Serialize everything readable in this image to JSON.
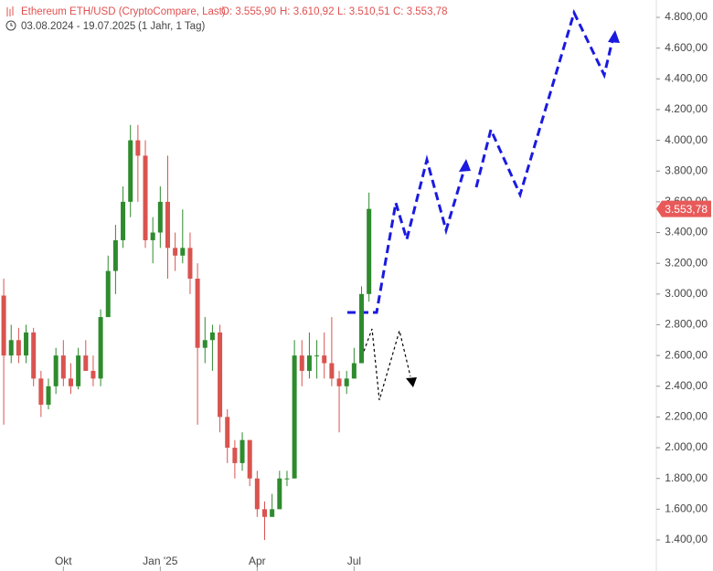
{
  "chart_data": {
    "type": "candlestick",
    "title": "Ethereum ETH/USD (CryptoCompare, Last)",
    "ohlc_texts": [
      "O: 3.555,90",
      "H: 3.610,92",
      "L: 3.510,51",
      "C: 3.553,78"
    ],
    "subtitle": "03.08.2024 - 19.07.2025",
    "period": "(1 Jahr, 1 Tag)",
    "categories": [
      null,
      null,
      null,
      null,
      null,
      null,
      null,
      null,
      "Okt",
      null,
      null,
      null,
      null,
      null,
      null,
      null,
      null,
      null,
      null,
      null,
      null,
      "Jan '25",
      null,
      null,
      null,
      null,
      null,
      null,
      null,
      null,
      null,
      null,
      null,
      null,
      "Apr",
      null,
      null,
      null,
      null,
      null,
      null,
      null,
      null,
      null,
      null,
      null,
      null,
      "Jul",
      null,
      null
    ],
    "open": [
      2990,
      2600,
      2700,
      2600,
      2750,
      2450,
      2280,
      2400,
      2600,
      2450,
      2400,
      2600,
      2500,
      2450,
      2850,
      3150,
      3350,
      3600,
      4000,
      3900,
      3350,
      3400,
      3600,
      3300,
      3250,
      3300,
      3100,
      2650,
      2700,
      2750,
      2200,
      2000,
      1900,
      2050,
      1800,
      1600,
      1550,
      1600,
      1800,
      1800,
      2600,
      2500,
      2600,
      2600,
      2550,
      2450,
      2400,
      2450,
      2550,
      3000
    ],
    "high": [
      3100,
      2800,
      2780,
      2800,
      2780,
      2500,
      2450,
      2650,
      2700,
      2550,
      2650,
      2700,
      2600,
      2900,
      3250,
      3450,
      3700,
      4100,
      4100,
      4000,
      3500,
      3700,
      3900,
      3400,
      3550,
      3400,
      3200,
      2850,
      2800,
      2800,
      2250,
      2050,
      2100,
      2050,
      1850,
      1650,
      1700,
      1850,
      1850,
      2700,
      2700,
      2750,
      2700,
      2750,
      2850,
      2500,
      2500,
      2650,
      3050,
      3660
    ],
    "low": [
      2150,
      2550,
      2550,
      2550,
      2400,
      2200,
      2250,
      2350,
      2400,
      2350,
      2380,
      2500,
      2400,
      2400,
      2850,
      3000,
      3300,
      3500,
      3600,
      3300,
      3200,
      3300,
      3100,
      3150,
      3200,
      3000,
      2150,
      2550,
      2500,
      2100,
      1900,
      1800,
      1850,
      1750,
      1550,
      1400,
      1550,
      1600,
      1750,
      1800,
      2400,
      2450,
      2450,
      2450,
      2400,
      2100,
      2350,
      2450,
      2550,
      2950
    ],
    "close": [
      2600,
      2700,
      2600,
      2750,
      2450,
      2280,
      2400,
      2600,
      2450,
      2400,
      2600,
      2500,
      2450,
      2850,
      3150,
      3350,
      3600,
      4000,
      3900,
      3350,
      3400,
      3600,
      3300,
      3250,
      3300,
      3100,
      2650,
      2700,
      2750,
      2200,
      2000,
      1900,
      2050,
      1800,
      1600,
      1550,
      1600,
      1800,
      1800,
      2600,
      2500,
      2600,
      2600,
      2550,
      2450,
      2400,
      2450,
      2550,
      3000,
      3553.78
    ],
    "up_color": "#2e8b2e",
    "down_color": "#d9534f",
    "ylim": [
      1400,
      4800
    ],
    "yticks": [
      {
        "value": 1400,
        "label": "1.400,00"
      },
      {
        "value": 1600,
        "label": "1.600,00"
      },
      {
        "value": 1800,
        "label": "1.800,00"
      },
      {
        "value": 2000,
        "label": "2.000,00"
      },
      {
        "value": 2200,
        "label": "2.200,00"
      },
      {
        "value": 2400,
        "label": "2.400,00"
      },
      {
        "value": 2600,
        "label": "2.600,00"
      },
      {
        "value": 2800,
        "label": "2.800,00"
      },
      {
        "value": 3000,
        "label": "3.000,00"
      },
      {
        "value": 3200,
        "label": "3.200,00"
      },
      {
        "value": 3400,
        "label": "3.400,00"
      },
      {
        "value": 3600,
        "label": "3.600,00"
      },
      {
        "value": 3800,
        "label": "3.800,00"
      },
      {
        "value": 4000,
        "label": "4.000,00"
      },
      {
        "value": 4200,
        "label": "4.200,00"
      },
      {
        "value": 4400,
        "label": "4.400,00"
      },
      {
        "value": 4600,
        "label": "4.600,00"
      },
      {
        "value": 4800,
        "label": "4.800,00"
      }
    ],
    "last_price": {
      "value": 3553.78,
      "label": "3.553,78"
    },
    "last_price_color": "#e85a5a"
  }
}
